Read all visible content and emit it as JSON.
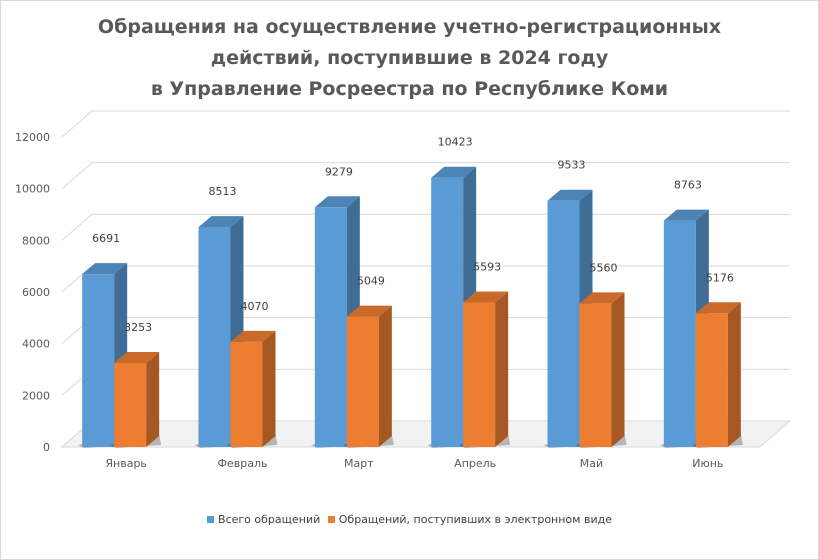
{
  "chart_data": {
    "type": "bar",
    "title_lines": [
      "Обращения на осуществление учетно-регистрационных",
      "действий, поступившие в 2024 году",
      "в Управление Росреестра по Республике Коми"
    ],
    "categories": [
      "Январь",
      "Февраль",
      "Март",
      "Апрель",
      "Май",
      "Июнь"
    ],
    "series": [
      {
        "name": "Всего обращений",
        "values": [
          6691,
          8513,
          9279,
          10423,
          9533,
          8763
        ],
        "color": "#5b9bd5"
      },
      {
        "name": "Обращений, поступивших в электронном виде",
        "values": [
          3253,
          4070,
          5049,
          5593,
          5560,
          5176
        ],
        "color": "#ed7d31"
      }
    ],
    "yticks": [
      "0",
      "2000",
      "4000",
      "6000",
      "8000",
      "10000",
      "12000"
    ],
    "ylim": [
      0,
      12000
    ],
    "grid": true,
    "legend_position": "bottom",
    "three_d": true
  }
}
